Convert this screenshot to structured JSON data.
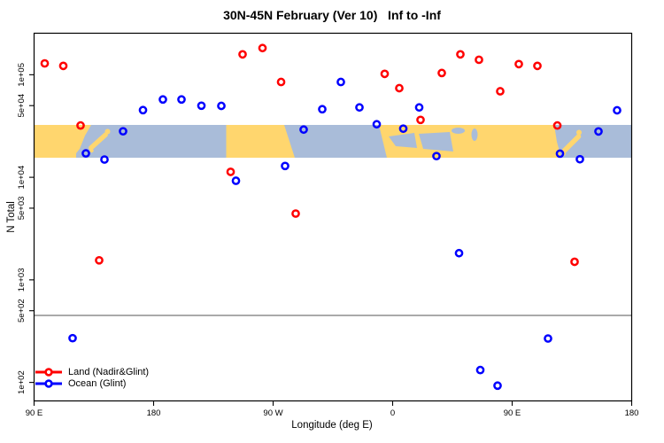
{
  "title": "30N-45N February (Ver 10)   Inf to -Inf",
  "chart_data": {
    "type": "scatter",
    "title": "30N-45N February (Ver 10)   Inf to -Inf",
    "xlabel": "Longitude (deg E)",
    "ylabel": "N Total",
    "x_axis": {
      "domain": [
        90,
        540
      ],
      "ticks": [
        90,
        180,
        270,
        360,
        450,
        540
      ],
      "tick_labels": [
        "90 E",
        "180",
        "90 W",
        "0",
        "90 E",
        "180"
      ]
    },
    "y_axis": {
      "scale": "log",
      "domain": [
        66,
        254000
      ],
      "ticks": [
        100000,
        50000,
        10000,
        5000,
        1000,
        500,
        100
      ],
      "tick_labels": [
        "1e+05",
        "5e+04",
        "1e+04",
        "5e+03",
        "1e+03",
        "5e+02",
        "1e+02"
      ]
    },
    "reference_line": {
      "value": 450,
      "color": "#9E9E9E"
    },
    "map_band": {
      "n_range": [
        15500,
        32400
      ],
      "land_color": "#FFD66E",
      "ocean_color": "#A9BCD9"
    },
    "series": [
      {
        "name": "Land (Nadir&Glint)",
        "color": "#FF0000",
        "marker": "open-circle",
        "points": [
          [
            98,
            129000
          ],
          [
            112,
            122000
          ],
          [
            125,
            32000
          ],
          [
            139,
            1550
          ],
          [
            238,
            11300
          ],
          [
            247,
            158000
          ],
          [
            262,
            182000
          ],
          [
            276,
            85000
          ],
          [
            287,
            4430
          ],
          [
            354,
            102000
          ],
          [
            365,
            74000
          ],
          [
            381,
            36300
          ],
          [
            397,
            104000
          ],
          [
            411,
            158000
          ],
          [
            425,
            140000
          ],
          [
            441,
            69000
          ],
          [
            455,
            127000
          ],
          [
            469,
            122000
          ],
          [
            484,
            32000
          ],
          [
            497,
            1500
          ]
        ]
      },
      {
        "name": "Ocean (Glint)",
        "color": "#0000FF",
        "marker": "open-circle",
        "points": [
          [
            119,
            270
          ],
          [
            129,
            17100
          ],
          [
            143,
            14900
          ],
          [
            157,
            28100
          ],
          [
            172,
            45200
          ],
          [
            187,
            57400
          ],
          [
            201,
            57400
          ],
          [
            216,
            49900
          ],
          [
            231,
            49700
          ],
          [
            242,
            9250
          ],
          [
            279,
            12900
          ],
          [
            293,
            29200
          ],
          [
            307,
            46100
          ],
          [
            321,
            85000
          ],
          [
            335,
            48000
          ],
          [
            348,
            32900
          ],
          [
            368,
            29800
          ],
          [
            380,
            48000
          ],
          [
            393,
            16100
          ],
          [
            410,
            1820
          ],
          [
            426,
            132
          ],
          [
            439,
            93
          ],
          [
            477,
            268
          ],
          [
            486,
            17000
          ],
          [
            501,
            15000
          ],
          [
            515,
            28000
          ],
          [
            529,
            45000
          ]
        ]
      }
    ],
    "legend": {
      "position": "bottom-left",
      "items": [
        {
          "label": "Land (Nadir&Glint)",
          "color": "#FF0000"
        },
        {
          "label": "Ocean (Glint)",
          "color": "#0000FF"
        }
      ]
    }
  }
}
